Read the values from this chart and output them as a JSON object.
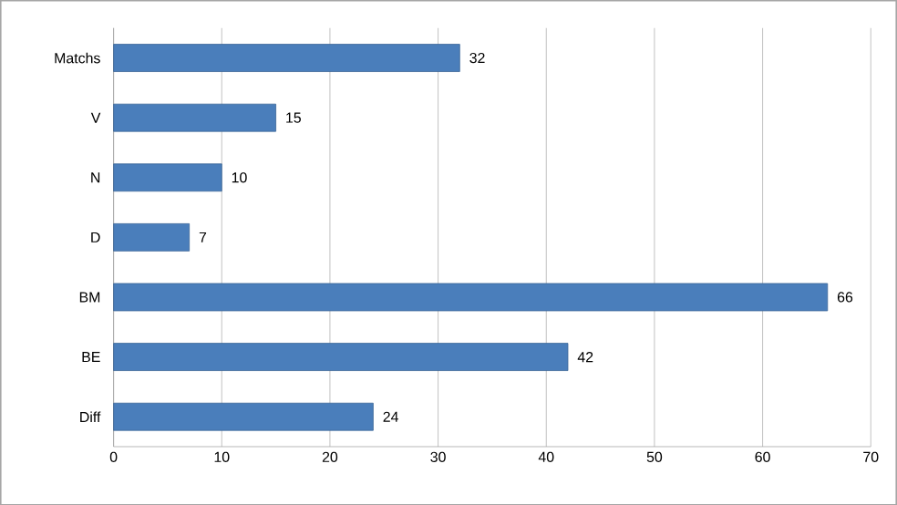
{
  "chart_data": {
    "type": "bar",
    "orientation": "horizontal",
    "categories": [
      "Matchs",
      "V",
      "N",
      "D",
      "BM",
      "BE",
      "Diff"
    ],
    "values": [
      32,
      15,
      10,
      7,
      66,
      42,
      24
    ],
    "color": "#4a7ebb",
    "xlim": [
      0,
      70
    ],
    "xticks": [
      0,
      10,
      20,
      30,
      40,
      50,
      60,
      70
    ],
    "grid": "x",
    "data_labels": true
  }
}
